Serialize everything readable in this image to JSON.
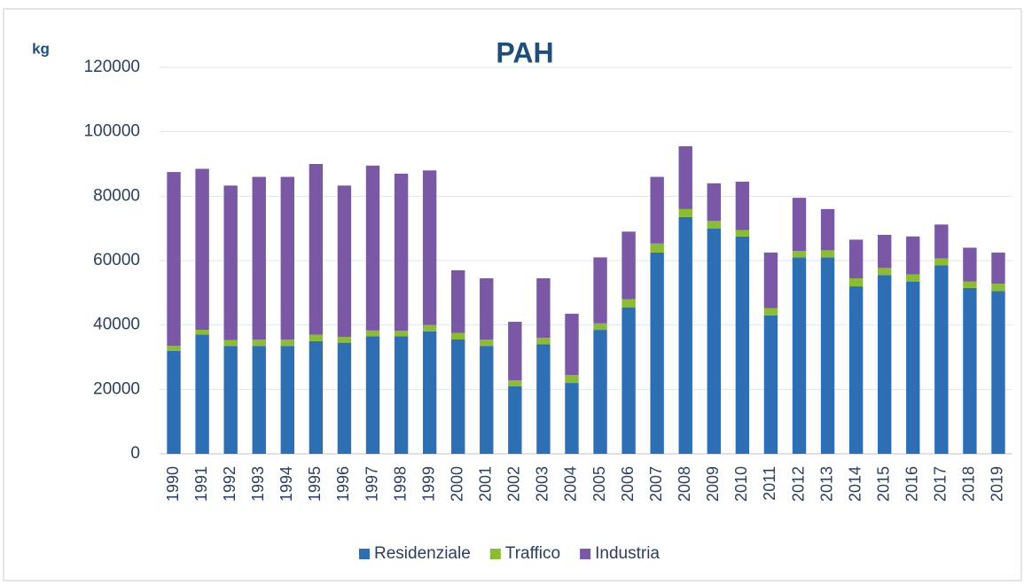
{
  "chart_data": {
    "type": "stacked_bar",
    "title": "PAH",
    "y_label": "kg",
    "categories": [
      "1990",
      "1991",
      "1992",
      "1993",
      "1994",
      "1995",
      "1996",
      "1997",
      "1998",
      "1999",
      "2000",
      "2001",
      "2002",
      "2003",
      "2004",
      "2005",
      "2006",
      "2007",
      "2008",
      "2009",
      "2010",
      "2011",
      "2012",
      "2013",
      "2014",
      "2015",
      "2016",
      "2017",
      "2018",
      "2019"
    ],
    "series": [
      {
        "name": "Residenziale",
        "color": "#2e6fb3",
        "values": [
          32000,
          37000,
          33500,
          33500,
          33500,
          35000,
          34500,
          36500,
          36500,
          38000,
          35500,
          33500,
          21000,
          34000,
          22000,
          38500,
          45500,
          62500,
          73500,
          70000,
          67500,
          43000,
          61000,
          61000,
          52000,
          55500,
          53500,
          58500,
          51500,
          50500
        ]
      },
      {
        "name": "Traffico",
        "color": "#8cbb35",
        "values": [
          1500,
          1500,
          1800,
          2000,
          2000,
          2000,
          1800,
          1800,
          1700,
          2000,
          2000,
          2000,
          1800,
          2000,
          2500,
          2000,
          2500,
          2800,
          2500,
          2300,
          2000,
          2200,
          2000,
          2200,
          2500,
          2200,
          2200,
          2200,
          2000,
          2300
        ]
      },
      {
        "name": "Industria",
        "color": "#7b58a6",
        "values": [
          54000,
          50000,
          48000,
          50500,
          50500,
          53000,
          47000,
          51200,
          48800,
          48000,
          19500,
          19000,
          18200,
          18500,
          19000,
          20500,
          21000,
          20700,
          19500,
          11700,
          15000,
          17300,
          16500,
          12800,
          12000,
          10300,
          11800,
          10500,
          10500,
          9700
        ]
      }
    ],
    "ylim": [
      0,
      120000
    ],
    "yticks": [
      0,
      20000,
      40000,
      60000,
      80000,
      100000,
      120000
    ],
    "grid": true,
    "legend": "bottom"
  }
}
